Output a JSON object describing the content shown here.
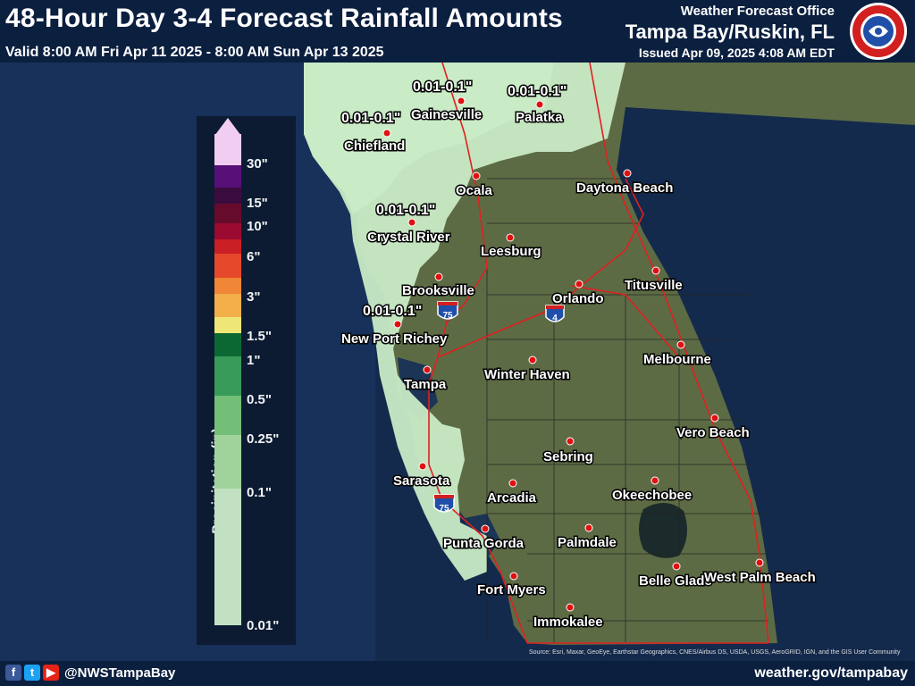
{
  "header": {
    "title": "48-Hour Day 3-4 Forecast Rainfall Amounts",
    "valid": "Valid 8:00 AM Fri Apr 11 2025 - 8:00 AM Sun Apr 13 2025",
    "office_label": "Weather Forecast Office",
    "office_name": "Tampa Bay/Ruskin, FL",
    "issued": "Issued Apr 09, 2025 4:08 AM EDT",
    "logo_text": "NATIONAL WEATHER SERVICE"
  },
  "legend": {
    "title": "Precipitation (in)",
    "ticks": [
      "30\"",
      "15\"",
      "10\"",
      "6\"",
      "3\"",
      "1.5\"",
      "1\"",
      "0.5\"",
      "0.25\"",
      "0.1\"",
      "0.01\""
    ],
    "colors": [
      "#fdd6fb",
      "#5a0f7a",
      "#3d0b3d",
      "#6b0a2a",
      "#a3082e",
      "#d41f22",
      "#f24a2a",
      "#fb8c35",
      "#feb64a",
      "#fbf07a",
      "#0b6b30",
      "#3aa15a",
      "#79c779",
      "#a8dca0",
      "#cbebc8"
    ]
  },
  "map": {
    "cities": [
      "Gainesville",
      "Palatka",
      "Chiefland",
      "Ocala",
      "Daytona Beach",
      "Crystal River",
      "Leesburg",
      "Titusville",
      "Orlando",
      "Brooksville",
      "New Port Richey",
      "Melbourne",
      "Winter Haven",
      "Tampa",
      "Vero Beach",
      "Sebring",
      "Sarasota",
      "Arcadia",
      "Okeechobee",
      "Punta Gorda",
      "Palmdale",
      "Fort Myers",
      "Belle Glade",
      "West Palm Beach",
      "Immokalee"
    ],
    "amounts": [
      "0.01-0.1\"",
      "0.01-0.1\"",
      "0.01-0.1\"",
      "0.01-0.1\"",
      "0.01-0.1\""
    ],
    "interstates": [
      "75",
      "4",
      "75"
    ],
    "attribution": "Source: Esri, Maxar, GeoEye, Earthstar Geographics, CNES/Airbus DS, USDA, USGS, AeroGRID, IGN, and the GIS User Community"
  },
  "footer": {
    "handle": "@NWSTampaBay",
    "website": "weather.gov/tampabay",
    "icons": [
      "facebook-icon",
      "twitter-icon",
      "youtube-icon"
    ]
  }
}
